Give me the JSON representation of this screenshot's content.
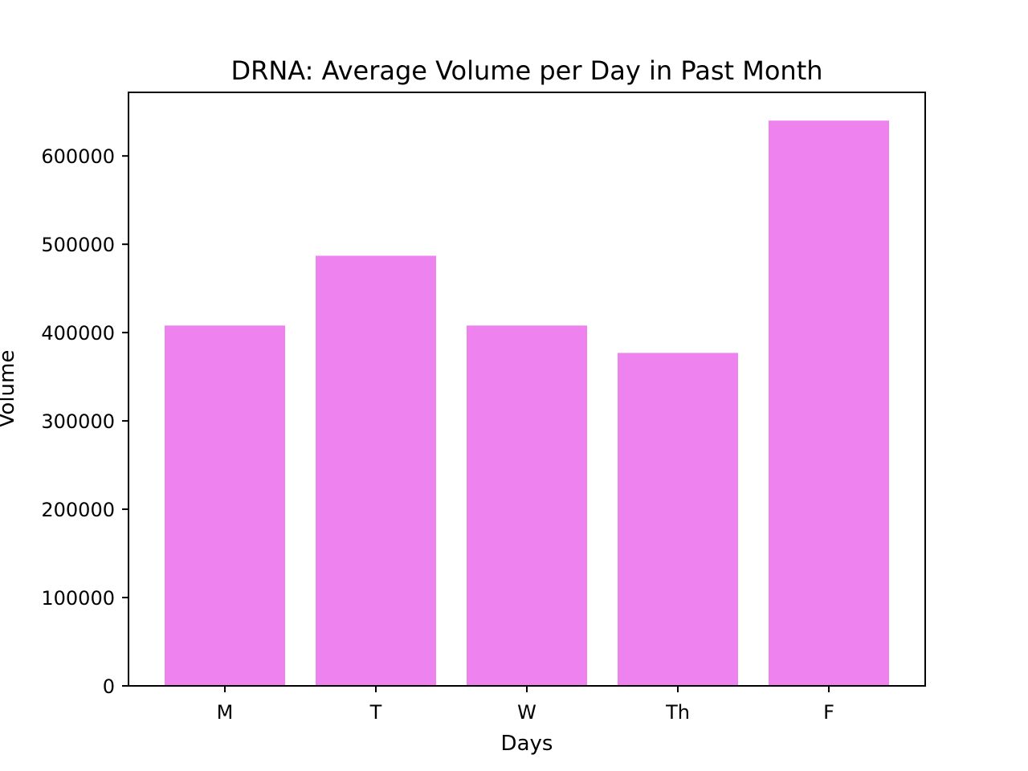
{
  "chart_data": {
    "type": "bar",
    "title": "DRNA: Average Volume per Day in Past Month",
    "xlabel": "Days",
    "ylabel": "Volume",
    "categories": [
      "M",
      "T",
      "W",
      "Th",
      "F"
    ],
    "values": [
      408000,
      487000,
      408000,
      377000,
      640000
    ],
    "ylim": [
      0,
      672000
    ],
    "yticks": [
      0,
      100000,
      200000,
      300000,
      400000,
      500000,
      600000
    ],
    "ytick_labels": [
      "0",
      "100000",
      "200000",
      "300000",
      "400000",
      "500000",
      "600000"
    ],
    "bar_color": "#ee82ee",
    "grid": false,
    "legend": "none"
  }
}
